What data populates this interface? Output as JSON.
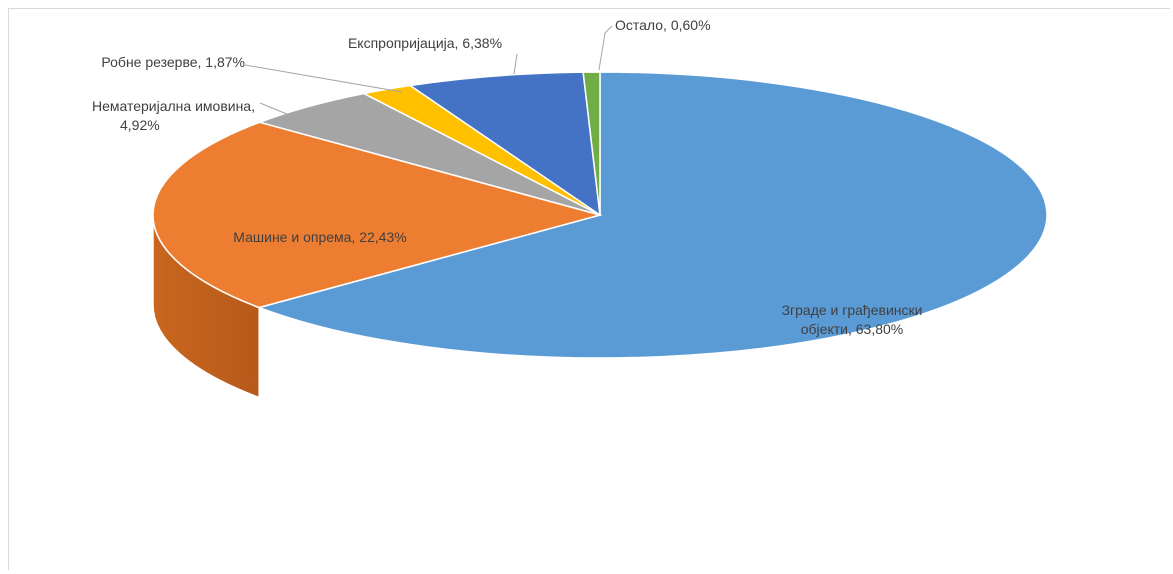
{
  "chart_data": {
    "type": "pie",
    "title": "",
    "style": "3d",
    "slices": [
      {
        "label_lines": [
          "Зграде и грађевински",
          "објекти, 63,80%"
        ],
        "value": 63.8,
        "color": "#5b9bd5"
      },
      {
        "label_lines": [
          "Машине и опрема, 22,43%"
        ],
        "value": 22.43,
        "color": "#ed7d31"
      },
      {
        "label_lines": [
          "Нематеријална имовина,",
          "4,92%"
        ],
        "value": 4.92,
        "color": "#a5a5a5"
      },
      {
        "label_lines": [
          "Робне резерве, 1,87%"
        ],
        "value": 1.87,
        "color": "#ffc000"
      },
      {
        "label_lines": [
          "Експропријација, 6,38%"
        ],
        "value": 6.38,
        "color": "#4472c4"
      },
      {
        "label_lines": [
          "Остало, 0,60%"
        ],
        "value": 0.6,
        "color": "#70ad47"
      }
    ]
  }
}
